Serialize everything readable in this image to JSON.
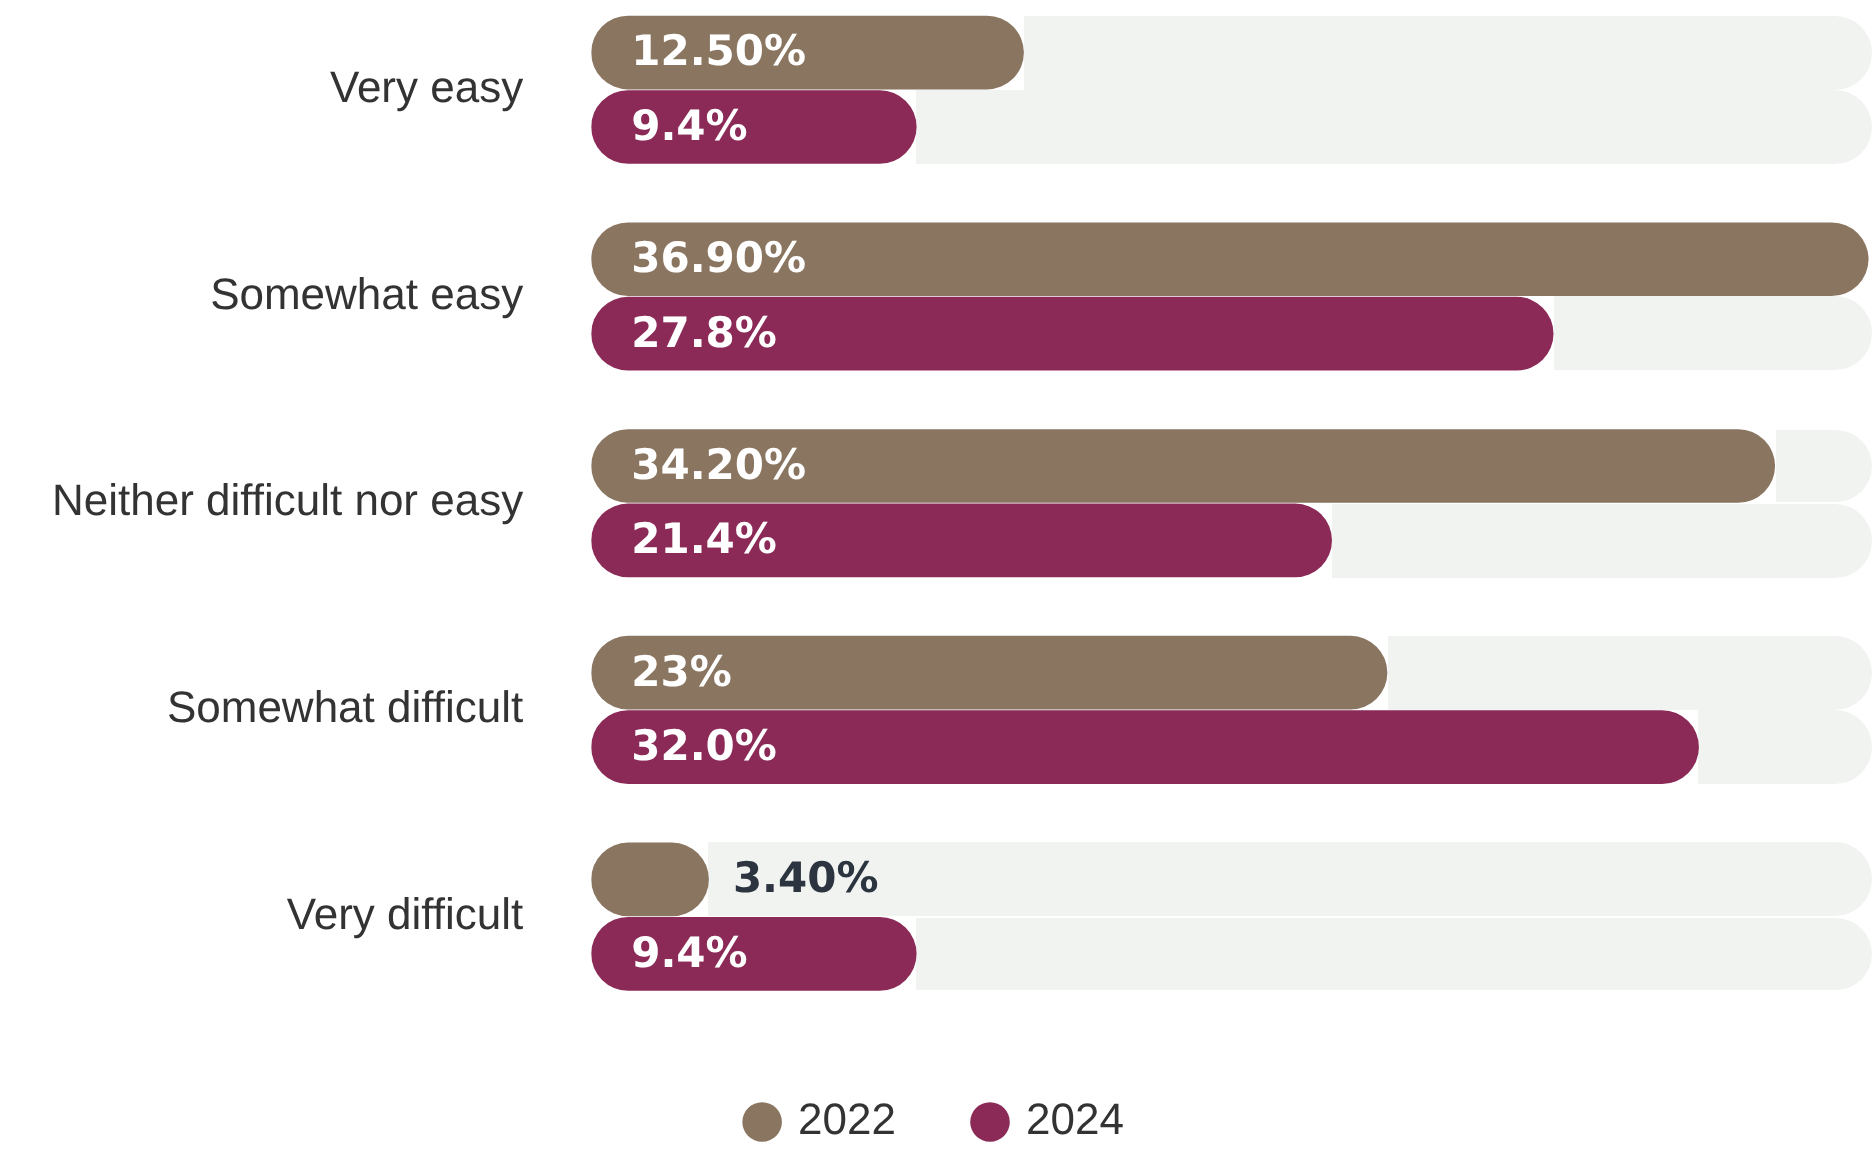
{
  "chart_data": {
    "type": "bar",
    "orientation": "horizontal",
    "categories": [
      "Very easy",
      "Somewhat easy",
      "Neither difficult nor easy",
      "Somewhat difficult",
      "Very difficult"
    ],
    "series": [
      {
        "name": "2022",
        "color": "#8a7560",
        "values": [
          12.5,
          36.9,
          34.2,
          23,
          3.4
        ],
        "value_labels": [
          "12.50%",
          "36.90%",
          "34.20%",
          "23%",
          "3.40%"
        ]
      },
      {
        "name": "2024",
        "color": "#8b2a57",
        "values": [
          9.4,
          27.8,
          21.4,
          32.0,
          9.4
        ],
        "value_labels": [
          "9.4%",
          "27.8%",
          "21.4%",
          "32.0%",
          "9.4%"
        ]
      }
    ],
    "xlim": [
      0,
      37
    ],
    "tick_labels": "y",
    "legend": "bottom"
  }
}
